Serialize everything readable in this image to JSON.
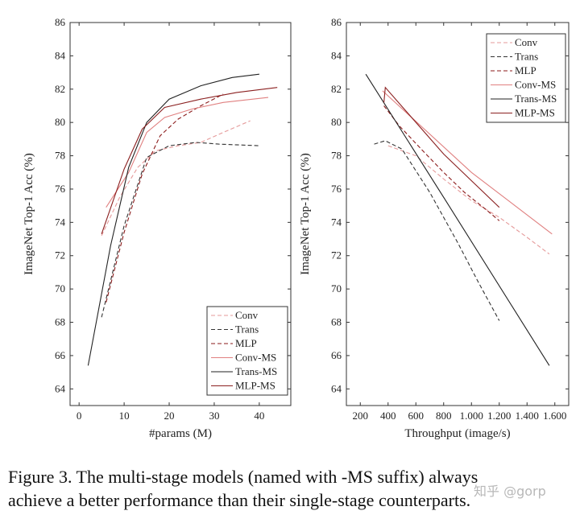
{
  "chart_data": [
    {
      "type": "line",
      "xlabel": "#params (M)",
      "ylabel": "ImageNet Top-1 Acc (%)",
      "xlim": [
        -2,
        47
      ],
      "ylim": [
        63,
        86
      ],
      "xticks": [
        0,
        10,
        20,
        30,
        40
      ],
      "yticks": [
        64,
        66,
        68,
        70,
        72,
        74,
        76,
        78,
        80,
        82,
        84,
        86
      ],
      "legend_position": "bottom-right",
      "series": [
        {
          "name": "Conv",
          "style": "dashed",
          "color": "#e59a9a",
          "x": [
            5,
            9,
            13,
            17,
            22,
            27,
            32,
            38
          ],
          "y": [
            73.2,
            75.5,
            77.3,
            78.3,
            78.6,
            78.8,
            79.4,
            80.1
          ]
        },
        {
          "name": "Trans",
          "style": "dashed",
          "color": "#333333",
          "x": [
            5,
            10,
            15,
            20,
            26,
            31,
            40
          ],
          "y": [
            68.3,
            73.8,
            77.9,
            78.6,
            78.8,
            78.7,
            78.6
          ]
        },
        {
          "name": "MLP",
          "style": "dashed",
          "color": "#8b1a1a",
          "x": [
            6,
            10,
            14,
            18,
            22,
            27,
            32
          ],
          "y": [
            69.2,
            73.4,
            76.9,
            79.2,
            80.2,
            81.0,
            81.7
          ]
        },
        {
          "name": "Conv-MS",
          "style": "solid",
          "color": "#e08080",
          "x": [
            6,
            11,
            15,
            19,
            25,
            32,
            42
          ],
          "y": [
            74.9,
            77.0,
            79.4,
            80.3,
            80.8,
            81.2,
            81.5
          ]
        },
        {
          "name": "Trans-MS",
          "style": "solid",
          "color": "#222222",
          "x": [
            2,
            7,
            11,
            15,
            20,
            27,
            34,
            40
          ],
          "y": [
            65.4,
            72.6,
            77.3,
            80.0,
            81.4,
            82.2,
            82.7,
            82.9
          ]
        },
        {
          "name": "MLP-MS",
          "style": "solid",
          "color": "#8b2020",
          "x": [
            5,
            10,
            14,
            19,
            27,
            35,
            44
          ],
          "y": [
            73.3,
            77.2,
            79.6,
            80.9,
            81.4,
            81.8,
            82.1
          ]
        }
      ]
    },
    {
      "type": "line",
      "xlabel": "Throughput (image/s)",
      "ylabel": "ImageNet Top-1 Acc (%)",
      "xlim": [
        100,
        1700
      ],
      "ylim": [
        63,
        86
      ],
      "xticks": [
        200,
        400,
        600,
        800,
        1000,
        1200,
        1400,
        1600
      ],
      "xtick_labels": [
        "200",
        "400",
        "600",
        "800",
        "1.000",
        "1.200",
        "1.400",
        "1.600"
      ],
      "yticks": [
        64,
        66,
        68,
        70,
        72,
        74,
        76,
        78,
        80,
        82,
        84,
        86
      ],
      "legend_position": "top-right",
      "series": [
        {
          "name": "Conv",
          "style": "dashed",
          "color": "#e59a9a",
          "x": [
            400,
            600,
            800,
            1000,
            1200,
            1400,
            1560
          ],
          "y": [
            78.6,
            78.0,
            76.6,
            75.3,
            74.3,
            73.1,
            72.1
          ]
        },
        {
          "name": "Trans",
          "style": "dashed",
          "color": "#333333",
          "x": [
            300,
            380,
            500,
            700,
            900,
            1050,
            1200
          ],
          "y": [
            78.7,
            78.9,
            78.4,
            75.8,
            72.8,
            70.4,
            68.1
          ]
        },
        {
          "name": "MLP",
          "style": "dashed",
          "color": "#8b1a1a",
          "x": [
            370,
            480,
            650,
            800,
            950,
            1100,
            1200
          ],
          "y": [
            81.0,
            79.8,
            78.3,
            77.0,
            75.8,
            74.8,
            74.1
          ]
        },
        {
          "name": "Conv-MS",
          "style": "solid",
          "color": "#e08080",
          "x": [
            360,
            1000,
            1580
          ],
          "y": [
            81.9,
            77.0,
            73.3
          ]
        },
        {
          "name": "Trans-MS",
          "style": "solid",
          "color": "#222222",
          "x": [
            240,
            800,
            1560
          ],
          "y": [
            82.9,
            75.5,
            65.4
          ]
        },
        {
          "name": "MLP-MS",
          "style": "solid",
          "color": "#8b2020",
          "x": [
            370,
            380,
            800,
            1200
          ],
          "y": [
            81.2,
            82.1,
            78.1,
            74.9
          ]
        }
      ]
    }
  ],
  "caption": {
    "line1": "Figure 3. The multi-stage models (named with -MS suffix) always",
    "line2": "achieve a better performance than their single-stage counterparts."
  },
  "watermark": "知乎 @gorp"
}
